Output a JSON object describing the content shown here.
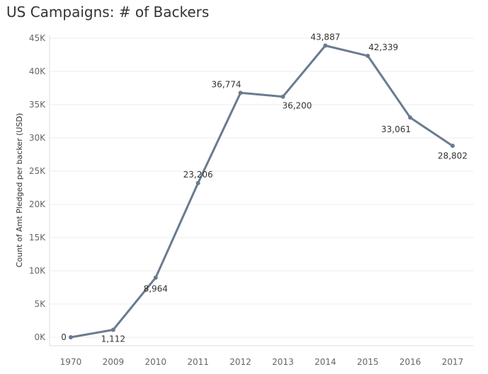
{
  "chart_data": {
    "type": "line",
    "title": "US Campaigns: # of Backers",
    "xlabel": "",
    "ylabel": "Count of Amt Pledged per backer (USD)",
    "categories": [
      "1970",
      "2009",
      "2010",
      "2011",
      "2012",
      "2013",
      "2014",
      "2015",
      "2016",
      "2017"
    ],
    "series": [
      {
        "values": [
          0,
          1112,
          8964,
          23206,
          36774,
          36200,
          43887,
          42339,
          33061,
          28802
        ]
      }
    ],
    "data_labels": [
      "0",
      "1,112",
      "8,964",
      "23,206",
      "36,774",
      "36,200",
      "43,887",
      "42,339",
      "33,061",
      "28,802"
    ],
    "ylim": [
      0,
      45000
    ],
    "yticks": [
      0,
      5000,
      10000,
      15000,
      20000,
      25000,
      30000,
      35000,
      40000,
      45000
    ],
    "ytick_labels": [
      "0K",
      "5K",
      "10K",
      "15K",
      "20K",
      "25K",
      "30K",
      "35K",
      "40K",
      "45K"
    ],
    "grid": true,
    "line_color": "#6a7b8f"
  }
}
